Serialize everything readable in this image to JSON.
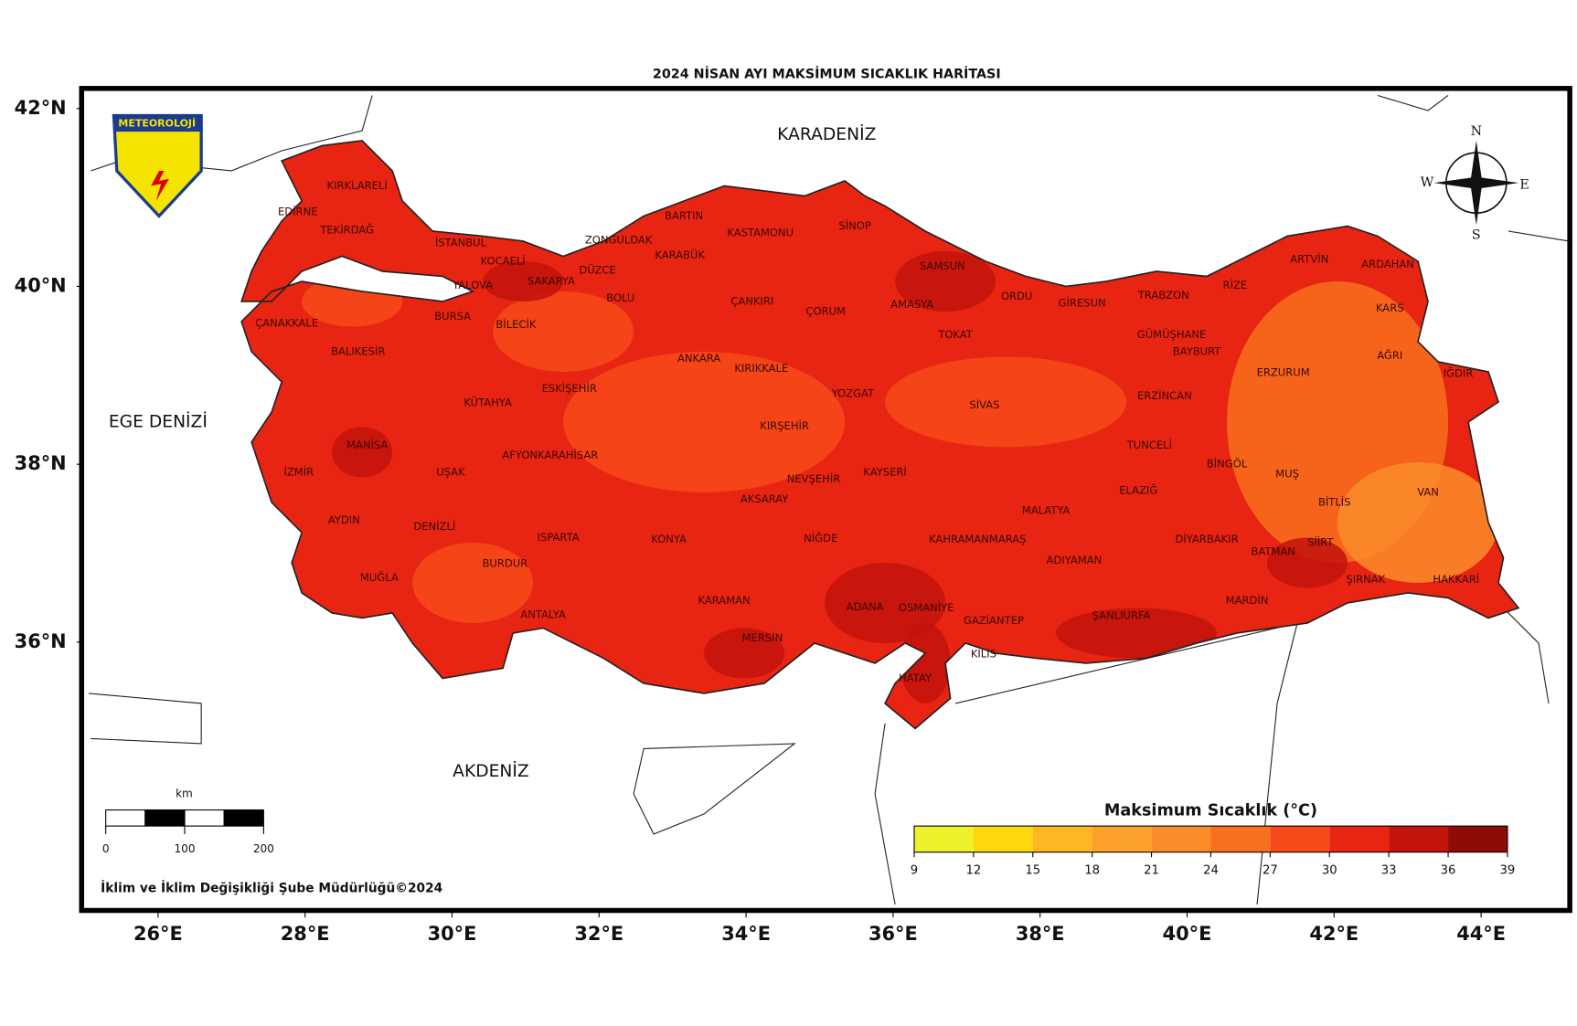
{
  "title": "2024 NİSAN AYI MAKSİMUM SICAKLIK HARİTASI",
  "logo": "METEOROLOJİ",
  "seas": [
    "KARADENİZ",
    "EGE DENİZİ",
    "AKDENİZ"
  ],
  "provinces": [
    "KIRKLARELİ",
    "EDİRNE",
    "TEKİRDAĞ",
    "İSTANBUL",
    "KOCAELİ",
    "SAKARYA",
    "DÜZCE",
    "ZONGULDAK",
    "BARTIN",
    "KARABÜK",
    "KASTAMONU",
    "SİNOP",
    "SAMSUN",
    "ORDU",
    "GİRESUN",
    "TRABZON",
    "RİZE",
    "ARTVİN",
    "ARDAHAN",
    "KARS",
    "IĞDIR",
    "AĞRI",
    "ERZURUM",
    "BAYBURT",
    "GÜMÜŞHANE",
    "YALOVA",
    "BURSA",
    "BİLECİK",
    "BOLU",
    "ÇANKIRI",
    "ÇORUM",
    "AMASYA",
    "TOKAT",
    "ÇANAKKALE",
    "BALIKESİR",
    "ANKARA",
    "KIRIKKALE",
    "YOZGAT",
    "SİVAS",
    "ERZİNCAN",
    "ESKİŞEHİR",
    "KÜTAHYA",
    "KIRŞEHİR",
    "TUNCELİ",
    "BİNGÖL",
    "MUŞ",
    "VAN",
    "BİTLİS",
    "MANİSA",
    "İZMİR",
    "UŞAK",
    "AFYONKARAHİSAR",
    "NEVŞEHİR",
    "KAYSERİ",
    "AKSARAY",
    "ELAZIĞ",
    "MALATYA",
    "AYDIN",
    "DENİZLİ",
    "ISPARTA",
    "KONYA",
    "NİĞDE",
    "KAHRAMANMARAŞ",
    "ADIYAMAN",
    "DİYARBAKIR",
    "BATMAN",
    "SİİRT",
    "ŞIRNAK",
    "HAKKARİ",
    "MARDİN",
    "ŞANLIURFA",
    "GAZİANTEP",
    "OSMANİYE",
    "ADANA",
    "HATAY",
    "KİLİS",
    "MERSİN",
    "KARAMAN",
    "ANTALYA",
    "BURDUR",
    "MUĞLA"
  ],
  "lat_ticks": [
    {
      "value": 42,
      "label": "42°N"
    },
    {
      "value": 40,
      "label": "40°N"
    },
    {
      "value": 38,
      "label": "38°N"
    },
    {
      "value": 36,
      "label": "36°N"
    }
  ],
  "lon_ticks": [
    {
      "value": 26,
      "label": "26°E"
    },
    {
      "value": 28,
      "label": "28°E"
    },
    {
      "value": 30,
      "label": "30°E"
    },
    {
      "value": 32,
      "label": "32°E"
    },
    {
      "value": 34,
      "label": "34°E"
    },
    {
      "value": 36,
      "label": "36°E"
    },
    {
      "value": 38,
      "label": "38°E"
    },
    {
      "value": 40,
      "label": "40°E"
    },
    {
      "value": 42,
      "label": "42°E"
    },
    {
      "value": 44,
      "label": "44°E"
    }
  ],
  "compass": {
    "n": "N",
    "e": "E",
    "s": "S",
    "w": "W"
  },
  "scale_bar": {
    "unit": "km",
    "ticks": [
      0,
      100,
      200
    ]
  },
  "legend": {
    "title": "Maksimum Sıcaklık (°C)",
    "ticks": [
      9,
      12,
      15,
      18,
      21,
      24,
      27,
      30,
      33,
      36,
      39
    ],
    "colors": [
      "#eef22c",
      "#fed80f",
      "#feb622",
      "#fca22a",
      "#fb8c2a",
      "#f8701f",
      "#f64a1a",
      "#e82412",
      "#c2130d",
      "#8e0b08"
    ]
  },
  "credit": "İklim ve İklim Değişikliği Şube Müdürlüğü©2024"
}
